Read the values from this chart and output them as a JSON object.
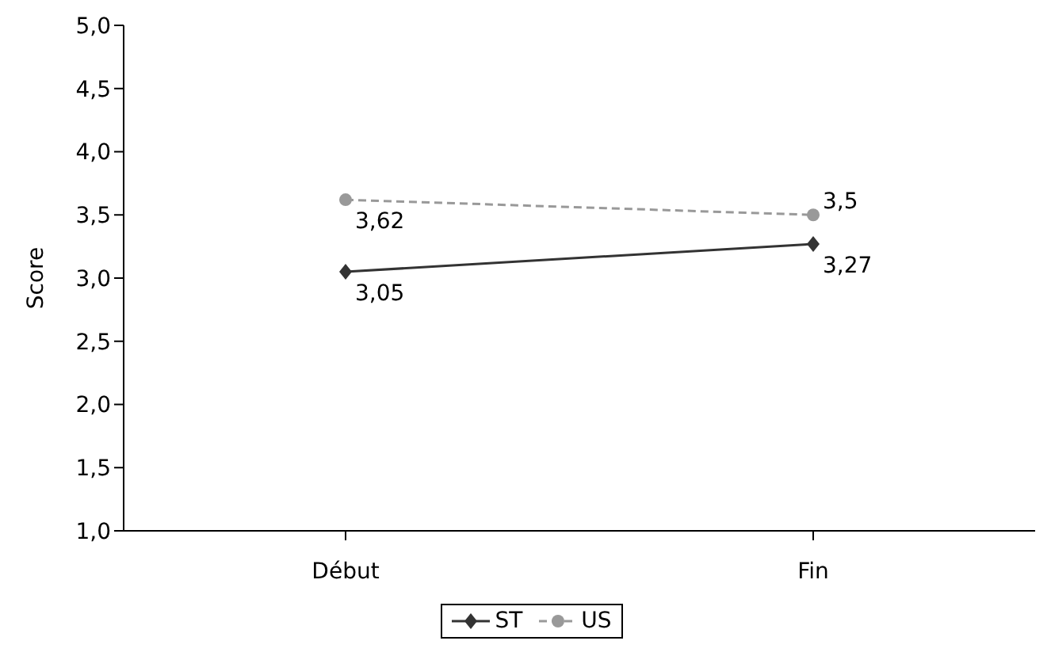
{
  "chart_data": {
    "type": "line",
    "ylabel": "Score",
    "categories": [
      "Début",
      "Fin"
    ],
    "series": [
      {
        "name": "ST",
        "color": "#333333",
        "values": [
          3.05,
          3.27
        ],
        "marker": "diamond",
        "line_style": "solid",
        "value_labels": [
          "3,05",
          "3,27"
        ]
      },
      {
        "name": "US",
        "color": "#999999",
        "values": [
          3.62,
          3.5
        ],
        "marker": "circle",
        "line_style": "dashed",
        "value_labels": [
          "3,62",
          "3,5"
        ]
      }
    ],
    "ylim": [
      1,
      5
    ],
    "yticks": [
      {
        "value": 1,
        "label": "1,0"
      },
      {
        "value": 1.5,
        "label": "1,5"
      },
      {
        "value": 2,
        "label": "2,0"
      },
      {
        "value": 2.5,
        "label": "2,5"
      },
      {
        "value": 3,
        "label": "3,0"
      },
      {
        "value": 3.5,
        "label": "3,5"
      },
      {
        "value": 4,
        "label": "4,0"
      },
      {
        "value": 4.5,
        "label": "4,5"
      },
      {
        "value": 5,
        "label": "5,0"
      }
    ],
    "grid": false,
    "legend": "bottom"
  }
}
